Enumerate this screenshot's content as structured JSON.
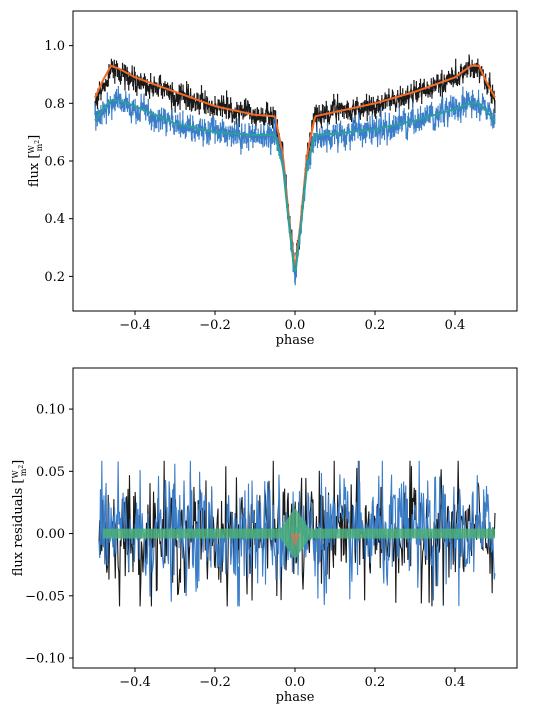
{
  "chart_data": [
    {
      "type": "line",
      "xlabel": "phase",
      "ylabel": "flux [W/m²]",
      "ylabel_parts": {
        "prefix": "flux [",
        "num": "W",
        "den": "m",
        "exp": "2",
        "suffix": "]"
      },
      "xlim": [
        -0.555,
        0.555
      ],
      "ylim": [
        0.08,
        1.12
      ],
      "xticks": [
        -0.4,
        -0.2,
        0.0,
        0.2,
        0.4
      ],
      "xtick_labels": [
        "−0.4",
        "−0.2",
        "0.0",
        "0.2",
        "0.4"
      ],
      "yticks": [
        0.2,
        0.4,
        0.6,
        0.8,
        1.0
      ],
      "ytick_labels": [
        "0.2",
        "0.4",
        "0.6",
        "0.8",
        "1.0"
      ],
      "series": [
        {
          "role": "observed",
          "color": "#1a1a1a",
          "x": [
            -0.5,
            -0.48,
            -0.46,
            -0.44,
            -0.4,
            -0.3,
            -0.2,
            -0.1,
            -0.05,
            -0.03,
            -0.015,
            0.0,
            0.015,
            0.03,
            0.05,
            0.1,
            0.2,
            0.3,
            0.4,
            0.44,
            0.46,
            0.48,
            0.5
          ],
          "y": [
            0.8,
            0.86,
            0.92,
            0.91,
            0.88,
            0.83,
            0.79,
            0.76,
            0.75,
            0.62,
            0.4,
            0.22,
            0.4,
            0.62,
            0.75,
            0.77,
            0.79,
            0.83,
            0.89,
            0.92,
            0.92,
            0.86,
            0.81
          ],
          "noise": 0.03
        },
        {
          "role": "model",
          "color": "#f26a24",
          "x": [
            -0.5,
            -0.48,
            -0.46,
            -0.44,
            -0.4,
            -0.3,
            -0.2,
            -0.1,
            -0.05,
            -0.03,
            -0.015,
            0.0,
            0.015,
            0.03,
            0.05,
            0.1,
            0.2,
            0.3,
            0.4,
            0.44,
            0.46,
            0.48,
            0.5
          ],
          "y": [
            0.82,
            0.88,
            0.93,
            0.92,
            0.89,
            0.84,
            0.79,
            0.76,
            0.755,
            0.62,
            0.4,
            0.22,
            0.4,
            0.62,
            0.755,
            0.77,
            0.8,
            0.84,
            0.89,
            0.93,
            0.93,
            0.87,
            0.82
          ]
        },
        {
          "role": "observed",
          "color": "#3a7dc9",
          "x": [
            -0.5,
            -0.48,
            -0.46,
            -0.44,
            -0.4,
            -0.3,
            -0.2,
            -0.1,
            -0.05,
            -0.03,
            -0.015,
            0.0,
            0.015,
            0.03,
            0.05,
            0.1,
            0.2,
            0.3,
            0.4,
            0.44,
            0.46,
            0.48,
            0.5
          ],
          "y": [
            0.73,
            0.77,
            0.8,
            0.8,
            0.78,
            0.73,
            0.7,
            0.69,
            0.69,
            0.58,
            0.38,
            0.18,
            0.38,
            0.58,
            0.69,
            0.69,
            0.71,
            0.74,
            0.78,
            0.8,
            0.79,
            0.77,
            0.73
          ],
          "noise": 0.035
        },
        {
          "role": "model",
          "color": "#2aa198",
          "x": [
            -0.5,
            -0.48,
            -0.46,
            -0.44,
            -0.4,
            -0.3,
            -0.2,
            -0.1,
            -0.05,
            -0.03,
            -0.015,
            0.0,
            0.015,
            0.03,
            0.05,
            0.1,
            0.2,
            0.3,
            0.4,
            0.44,
            0.46,
            0.48,
            0.5
          ],
          "y": [
            0.74,
            0.78,
            0.81,
            0.81,
            0.79,
            0.73,
            0.7,
            0.69,
            0.69,
            0.58,
            0.38,
            0.2,
            0.38,
            0.58,
            0.69,
            0.695,
            0.71,
            0.74,
            0.78,
            0.8,
            0.8,
            0.77,
            0.74
          ]
        }
      ],
      "grid": false
    },
    {
      "type": "line",
      "xlabel": "phase",
      "ylabel": "flux residuals [W/m²]",
      "ylabel_parts": {
        "prefix": "flux residuals [",
        "num": "W",
        "den": "m",
        "exp": "2",
        "suffix": "]"
      },
      "xlim": [
        -0.555,
        0.555
      ],
      "ylim": [
        -0.108,
        0.133
      ],
      "xticks": [
        -0.4,
        -0.2,
        0.0,
        0.2,
        0.4
      ],
      "xtick_labels": [
        "−0.4",
        "−0.2",
        "0.0",
        "0.2",
        "0.4"
      ],
      "yticks": [
        -0.1,
        -0.05,
        0.0,
        0.05,
        0.1
      ],
      "ytick_labels": [
        "−0.10",
        "−0.05",
        "0.00",
        "0.05",
        "0.10"
      ],
      "series": [
        {
          "role": "residuals",
          "color": "#1a1a1a",
          "x_range": [
            -0.49,
            0.5
          ],
          "amplitude": 0.045
        },
        {
          "role": "residuals",
          "color": "#3a7dc9",
          "x_range": [
            -0.49,
            0.5
          ],
          "amplitude": 0.045
        },
        {
          "role": "zero-band",
          "color": "#4caf7a",
          "x_range": [
            -0.48,
            0.5
          ],
          "half_width": 0.004,
          "bump_half_width": 0.017
        }
      ],
      "grid": false
    }
  ]
}
